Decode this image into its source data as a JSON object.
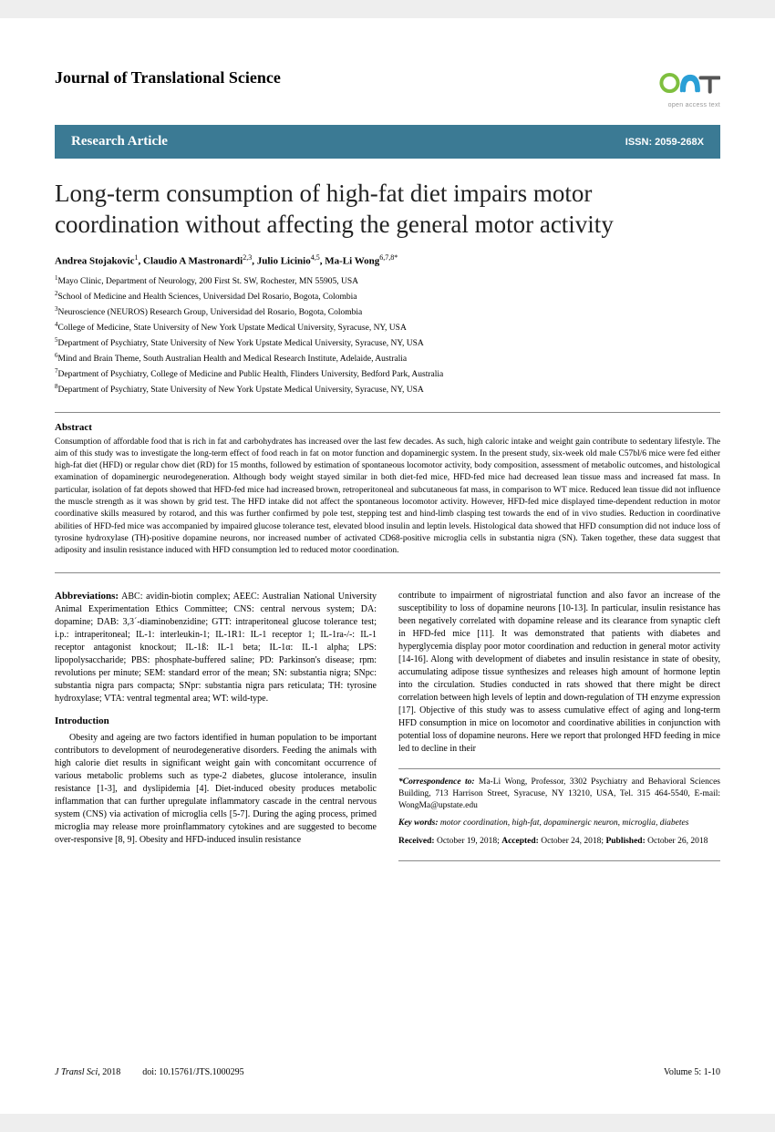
{
  "header": {
    "journal_name": "Journal of Translational Science",
    "logo_tag": "open access text",
    "logo_colors": {
      "ring": "#7fbf3f",
      "a": "#2a9fd6",
      "t": "#555555"
    }
  },
  "banner": {
    "label": "Research Article",
    "issn": "ISSN: 2059-268X",
    "bg": "#3b7a94"
  },
  "title": "Long-term consumption of high-fat diet impairs motor coordination without affecting the general motor activity",
  "authors_html": "Andrea Stojakovic",
  "authors": [
    {
      "name": "Andrea Stojakovic",
      "sup": "1"
    },
    {
      "name": "Claudio A Mastronardi",
      "sup": "2,3"
    },
    {
      "name": "Julio Licinio",
      "sup": "4,5"
    },
    {
      "name": "Ma-Li Wong",
      "sup": "6,7,8*"
    }
  ],
  "affiliations": [
    "Mayo Clinic, Department of Neurology, 200 First St. SW, Rochester, MN 55905, USA",
    "School of Medicine and Health Sciences, Universidad Del Rosario, Bogota, Colombia",
    "Neuroscience (NEUROS) Research Group, Universidad del Rosario, Bogota, Colombia",
    "College of Medicine, State University of New York Upstate Medical University, Syracuse, NY, USA",
    "Department of Psychiatry, State University of New York Upstate Medical University, Syracuse, NY, USA",
    "Mind and Brain Theme, South Australian Health and Medical Research Institute, Adelaide, Australia",
    "Department of Psychiatry, College of Medicine and Public Health, Flinders University, Bedford Park, Australia",
    "Department of Psychiatry, State University of New York Upstate Medical University, Syracuse, NY, USA"
  ],
  "abstract": {
    "heading": "Abstract",
    "text": "Consumption of affordable food that is rich in fat and carbohydrates has increased over the last few decades. As such, high caloric intake and weight gain contribute to sedentary lifestyle. The aim of this study was to investigate the long-term effect of food reach in fat on motor function and dopaminergic system. In the present study, six-week old male C57bl/6 mice were fed either high-fat diet (HFD) or regular chow diet (RD) for 15 months, followed by estimation of spontaneous locomotor activity, body composition, assessment of metabolic outcomes, and histological examination of dopaminergic neurodegeneration. Although body weight stayed similar in both diet-fed mice, HFD-fed mice had decreased lean tissue mass and increased fat mass. In particular, isolation of fat depots showed that HFD-fed mice had increased brown, retroperitoneal and subcutaneous fat mass, in comparison to WT mice. Reduced lean tissue did not influence the muscle strength as it was shown by grid test. The HFD intake did not affect the spontaneous locomotor activity. However, HFD-fed mice displayed time-dependent reduction in motor coordinative skills measured by rotarod, and this was further confirmed by pole test, stepping test and hind-limb clasping test towards the end of in vivo studies. Reduction in coordinative abilities of HFD-fed mice was accompanied by impaired glucose tolerance test, elevated blood insulin and leptin levels. Histological data showed that HFD consumption did not induce loss of tyrosine hydroxylase (TH)-positive dopamine neurons, nor increased number of activated CD68-positive microglia cells in substantia nigra (SN). Taken together, these data suggest that adiposity and insulin resistance induced with HFD consumption led to reduced motor coordination."
  },
  "body": {
    "abbrev_heading": "Abbreviations:",
    "abbrev_text": " ABC: avidin-biotin complex; AEEC: Australian National University Animal Experimentation Ethics Committee; CNS: central nervous system; DA: dopamine; DAB: 3,3´-diaminobenzidine; GTT: intraperitoneal glucose tolerance test; i.p.: intraperitoneal; IL-1: interleukin-1; IL-1R1: IL-1 receptor 1; IL-1ra-/-: IL-1 receptor antagonist knockout; IL-1ß: IL-1 beta; IL-1α: IL-1 alpha; LPS: lipopolysaccharide; PBS: phosphate-buffered saline; PD: Parkinson's disease; rpm: revolutions per minute; SEM: standard error of the mean; SN: substantia nigra; SNpc: substantia nigra pars compacta; SNpr: substantia nigra pars reticulata; TH: tyrosine hydroxylase; VTA: ventral tegmental area; WT: wild-type.",
    "intro_heading": "Introduction",
    "intro_p1": "Obesity and ageing are two factors identified in human population to be important contributors to development of neurodegenerative disorders. Feeding the animals with high calorie diet results in significant weight gain with concomitant occurrence of various metabolic problems such as type-2 diabetes, glucose intolerance, insulin resistance [1-3], and dyslipidemia [4]. Diet-induced obesity produces metabolic inflammation that can further upregulate inflammatory cascade in the central nervous system (CNS) via activation of microglia cells [5-7]. During the aging process, primed microglia may release more proinflammatory cytokines and are suggested to become over-responsive [8, 9]. Obesity and HFD-induced insulin resistance",
    "intro_p2": "contribute to impairment of nigrostriatal function and also favor an increase of the susceptibility to loss of dopamine neurons [10-13]. In particular, insulin resistance has been negatively correlated with dopamine release and its clearance from synaptic cleft in HFD-fed mice [11]. It was demonstrated that patients with diabetes and hyperglycemia display poor motor coordination and reduction in general motor activity [14-16]. Along with development of diabetes and insulin resistance in state of obesity, accumulating adipose tissue synthesizes and releases high amount of hormone leptin into the circulation. Studies conducted in rats showed that there might be direct correlation between high levels of leptin and down-regulation of TH enzyme expression [17]. Objective of this study was to assess cumulative effect of aging and long-term HFD consumption in mice on locomotor and coordinative abilities in conjunction with potential loss of dopamine neurons. Here we report that prolonged HFD feeding in mice led to decline in their"
  },
  "correspondence": {
    "label": "*Correspondence to:",
    "text": " Ma-Li Wong, Professor, 3302 Psychiatry and Behavioral Sciences Building, 713 Harrison Street, Syracuse, NY 13210, USA, Tel. 315 464-5540, E-mail: WongMa@upstate.edu",
    "keywords_label": "Key words:",
    "keywords_text": " motor coordination, high-fat, dopaminergic neuron, microglia, diabetes",
    "received_label": "Received:",
    "received_text": " October 19, 2018; ",
    "accepted_label": "Accepted:",
    "accepted_text": " October 24, 2018; ",
    "published_label": "Published:",
    "published_text": " October 26, 2018"
  },
  "footer": {
    "journal_short": "J Transl Sci",
    "year": ", 2018",
    "doi": "doi: 10.15761/JTS.1000295",
    "pages": "Volume 5: 1-10"
  }
}
